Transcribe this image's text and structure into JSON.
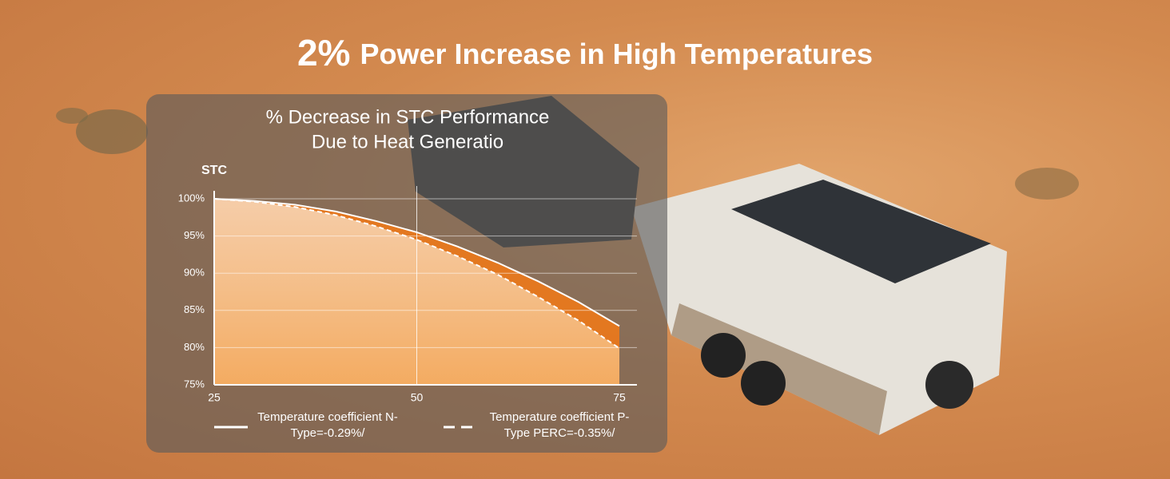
{
  "headline": {
    "emphasis": "2%",
    "text": "Power Increase in High Temperatures"
  },
  "chart_data": {
    "type": "line",
    "title": [
      "% Decrease in STC Performance",
      "Due to Heat Generatio"
    ],
    "y_label": "STC",
    "x": [
      25,
      30,
      35,
      40,
      45,
      50,
      55,
      60,
      65,
      70,
      75
    ],
    "series": [
      {
        "name": "Temperature coefficient N-Type=-0.29%/",
        "color": "#ffffff",
        "line_style": "solid",
        "fill": "#e8781e",
        "values": [
          100,
          99.7,
          99.2,
          98.3,
          97.0,
          95.5,
          93.6,
          91.4,
          88.9,
          86.1,
          82.9
        ]
      },
      {
        "name": "Temperature coefficient P-Type PERC=-0.35%/",
        "color": "#ffffff",
        "line_style": "dashed",
        "fill": "#f6b46c",
        "values": [
          100,
          99.6,
          98.9,
          97.8,
          96.3,
          94.5,
          92.3,
          89.8,
          86.8,
          83.6,
          79.9
        ]
      }
    ],
    "xlim": [
      25,
      75
    ],
    "xticks": [
      25,
      50,
      75
    ],
    "ylim": [
      75,
      100
    ],
    "yticks": [
      {
        "value": 75,
        "label": "75%"
      },
      {
        "value": 80,
        "label": "80%"
      },
      {
        "value": 85,
        "label": "85%"
      },
      {
        "value": 90,
        "label": "90%"
      },
      {
        "value": 95,
        "label": "95%"
      },
      {
        "value": 100,
        "label": "100%"
      }
    ],
    "grid": true
  }
}
